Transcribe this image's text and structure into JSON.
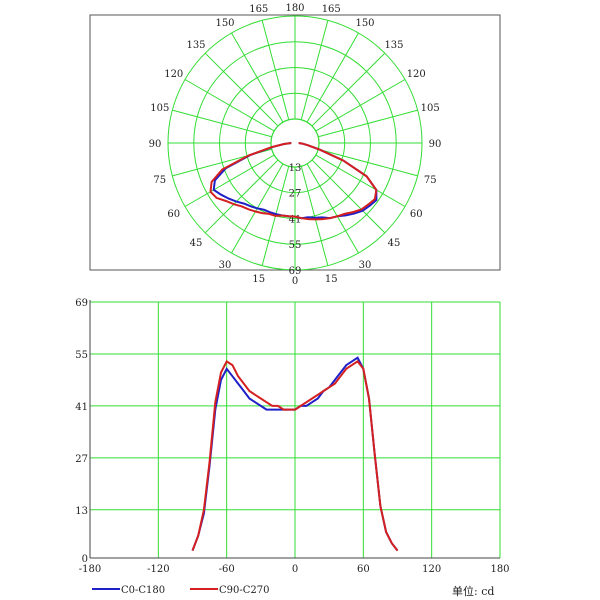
{
  "colors": {
    "grid": "#33dd33",
    "frame": "#555555",
    "c0": "#2020c8",
    "c90": "#d42020"
  },
  "unit_label": "单位: cd",
  "chart_data": [
    {
      "type": "polar",
      "angle_labels_left": [
        "165",
        "150",
        "135",
        "120",
        "105",
        "90",
        "75",
        "60",
        "45",
        "30",
        "15"
      ],
      "angle_labels_right": [
        "165",
        "150",
        "135",
        "120",
        "105",
        "90",
        "75",
        "60",
        "45",
        "30",
        "15"
      ],
      "angle_top": "180",
      "angle_bottom": "0",
      "radial_ticks": [
        13,
        27,
        41,
        55,
        69
      ],
      "rmax": 69,
      "series": [
        {
          "name": "C0-C180",
          "points": [
            [
              -90,
              2
            ],
            [
              -85,
              6
            ],
            [
              -80,
              12
            ],
            [
              -75,
              25
            ],
            [
              -70,
              40
            ],
            [
              -65,
              48
            ],
            [
              -60,
              51
            ],
            [
              -55,
              49
            ],
            [
              -50,
              47
            ],
            [
              -45,
              45
            ],
            [
              -40,
              43
            ],
            [
              -35,
              42
            ],
            [
              -30,
              41
            ],
            [
              -25,
              40
            ],
            [
              -20,
              40
            ],
            [
              -15,
              40
            ],
            [
              -10,
              40
            ],
            [
              -5,
              40
            ],
            [
              0,
              40
            ],
            [
              5,
              41
            ],
            [
              10,
              41
            ],
            [
              15,
              42
            ],
            [
              20,
              43
            ],
            [
              25,
              45
            ],
            [
              30,
              46
            ],
            [
              35,
              48
            ],
            [
              40,
              50
            ],
            [
              45,
              52
            ],
            [
              50,
              53
            ],
            [
              55,
              54
            ],
            [
              60,
              51
            ],
            [
              65,
              43
            ],
            [
              70,
              28
            ],
            [
              75,
              14
            ],
            [
              80,
              7
            ],
            [
              85,
              4
            ],
            [
              90,
              2
            ]
          ]
        },
        {
          "name": "C90-C270",
          "points": [
            [
              -90,
              2
            ],
            [
              -85,
              6
            ],
            [
              -80,
              13
            ],
            [
              -75,
              26
            ],
            [
              -70,
              42
            ],
            [
              -65,
              50
            ],
            [
              -60,
              53
            ],
            [
              -55,
              52
            ],
            [
              -50,
              49
            ],
            [
              -45,
              47
            ],
            [
              -40,
              45
            ],
            [
              -35,
              44
            ],
            [
              -30,
              43
            ],
            [
              -25,
              42
            ],
            [
              -20,
              41
            ],
            [
              -15,
              41
            ],
            [
              -10,
              40
            ],
            [
              -5,
              40
            ],
            [
              0,
              40
            ],
            [
              5,
              41
            ],
            [
              10,
              42
            ],
            [
              15,
              43
            ],
            [
              20,
              44
            ],
            [
              25,
              45
            ],
            [
              30,
              46
            ],
            [
              35,
              47
            ],
            [
              40,
              49
            ],
            [
              45,
              51
            ],
            [
              50,
              52
            ],
            [
              55,
              53
            ],
            [
              60,
              51
            ],
            [
              65,
              43
            ],
            [
              70,
              28
            ],
            [
              75,
              14
            ],
            [
              80,
              7
            ],
            [
              85,
              4
            ],
            [
              90,
              2
            ]
          ]
        }
      ]
    },
    {
      "type": "line",
      "xlim": [
        -180,
        180
      ],
      "ylim": [
        0,
        69
      ],
      "xticks": [
        -180,
        -120,
        -60,
        0,
        60,
        120,
        180
      ],
      "yticks": [
        0,
        13,
        27,
        41,
        55,
        69
      ],
      "series": [
        {
          "name": "C0-C180",
          "points": [
            [
              -90,
              2
            ],
            [
              -85,
              6
            ],
            [
              -80,
              12
            ],
            [
              -75,
              25
            ],
            [
              -70,
              40
            ],
            [
              -65,
              48
            ],
            [
              -60,
              51
            ],
            [
              -55,
              49
            ],
            [
              -50,
              47
            ],
            [
              -45,
              45
            ],
            [
              -40,
              43
            ],
            [
              -35,
              42
            ],
            [
              -30,
              41
            ],
            [
              -25,
              40
            ],
            [
              -20,
              40
            ],
            [
              -15,
              40
            ],
            [
              -10,
              40
            ],
            [
              -5,
              40
            ],
            [
              0,
              40
            ],
            [
              5,
              41
            ],
            [
              10,
              41
            ],
            [
              15,
              42
            ],
            [
              20,
              43
            ],
            [
              25,
              45
            ],
            [
              30,
              46
            ],
            [
              35,
              48
            ],
            [
              40,
              50
            ],
            [
              45,
              52
            ],
            [
              50,
              53
            ],
            [
              55,
              54
            ],
            [
              60,
              51
            ],
            [
              65,
              43
            ],
            [
              70,
              28
            ],
            [
              75,
              14
            ],
            [
              80,
              7
            ],
            [
              85,
              4
            ],
            [
              90,
              2
            ]
          ]
        },
        {
          "name": "C90-C270",
          "points": [
            [
              -90,
              2
            ],
            [
              -85,
              6
            ],
            [
              -80,
              13
            ],
            [
              -75,
              26
            ],
            [
              -70,
              42
            ],
            [
              -65,
              50
            ],
            [
              -60,
              53
            ],
            [
              -55,
              52
            ],
            [
              -50,
              49
            ],
            [
              -45,
              47
            ],
            [
              -40,
              45
            ],
            [
              -35,
              44
            ],
            [
              -30,
              43
            ],
            [
              -25,
              42
            ],
            [
              -20,
              41
            ],
            [
              -15,
              41
            ],
            [
              -10,
              40
            ],
            [
              -5,
              40
            ],
            [
              0,
              40
            ],
            [
              5,
              41
            ],
            [
              10,
              42
            ],
            [
              15,
              43
            ],
            [
              20,
              44
            ],
            [
              25,
              45
            ],
            [
              30,
              46
            ],
            [
              35,
              47
            ],
            [
              40,
              49
            ],
            [
              45,
              51
            ],
            [
              50,
              52
            ],
            [
              55,
              53
            ],
            [
              60,
              51
            ],
            [
              65,
              43
            ],
            [
              70,
              28
            ],
            [
              75,
              14
            ],
            [
              80,
              7
            ],
            [
              85,
              4
            ],
            [
              90,
              2
            ]
          ]
        }
      ]
    }
  ]
}
